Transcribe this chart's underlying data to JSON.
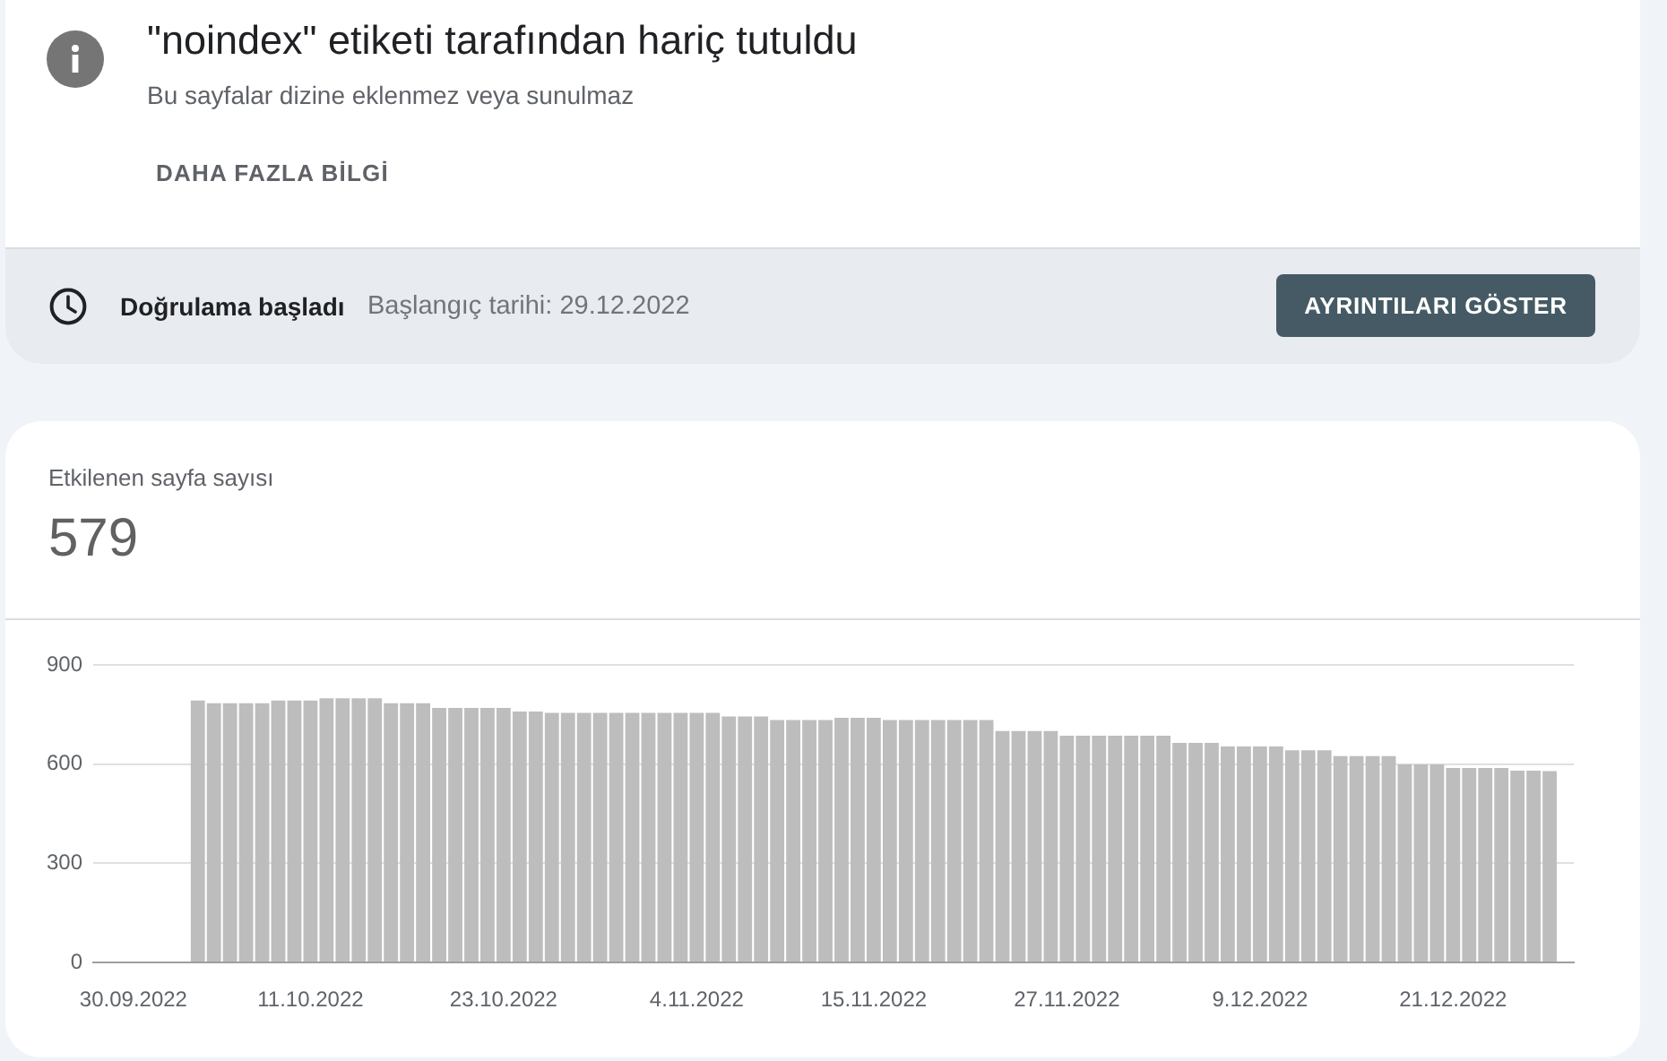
{
  "chart_data": {
    "type": "bar",
    "title": "\"noindex\" etiketi tarafından hariç tutuldu",
    "subtitle": "Bu sayfalar dizine eklenmez veya sunulmaz",
    "annotations": [
      "DAHA FAZLA BİLGİ",
      "Doğrulama başladı",
      "Başlangıç tarihi: 29.12.2022",
      "AYRINTILARI GÖSTER",
      "Etkilenen sayfa sayısı",
      "579"
    ],
    "categories": [
      null,
      null,
      "30.09.2022",
      null,
      null,
      null,
      null,
      null,
      null,
      null,
      null,
      null,
      null,
      "11.10.2022",
      null,
      null,
      null,
      null,
      null,
      null,
      null,
      null,
      null,
      null,
      null,
      "23.10.2022",
      null,
      null,
      null,
      null,
      null,
      null,
      null,
      null,
      null,
      null,
      null,
      "4.11.2022",
      null,
      null,
      null,
      null,
      null,
      null,
      null,
      null,
      null,
      null,
      "15.11.2022",
      null,
      null,
      null,
      null,
      null,
      null,
      null,
      null,
      null,
      null,
      null,
      "27.11.2022",
      null,
      null,
      null,
      null,
      null,
      null,
      null,
      null,
      null,
      null,
      null,
      "9.12.2022",
      null,
      null,
      null,
      null,
      null,
      null,
      null,
      null,
      null,
      null,
      null,
      "21.12.2022",
      null,
      null,
      null,
      null,
      null,
      null,
      null
    ],
    "values": [
      null,
      null,
      null,
      null,
      null,
      null,
      792,
      784,
      784,
      784,
      784,
      792,
      792,
      792,
      799,
      799,
      799,
      799,
      784,
      784,
      784,
      770,
      770,
      770,
      770,
      770,
      759,
      759,
      755,
      755,
      755,
      755,
      755,
      755,
      755,
      755,
      755,
      755,
      755,
      744,
      744,
      744,
      733,
      733,
      733,
      733,
      740,
      740,
      740,
      733,
      733,
      733,
      733,
      733,
      733,
      733,
      700,
      700,
      700,
      700,
      686,
      686,
      686,
      686,
      686,
      686,
      686,
      664,
      664,
      664,
      653,
      653,
      653,
      653,
      642,
      642,
      642,
      624,
      624,
      624,
      624,
      599,
      599,
      599,
      588,
      588,
      588,
      588,
      580,
      580,
      579,
      null
    ],
    "color": "#bdbdbd",
    "ylim": [
      0,
      900
    ],
    "yticks": [
      0,
      300,
      600,
      900
    ],
    "grid": "y"
  }
}
